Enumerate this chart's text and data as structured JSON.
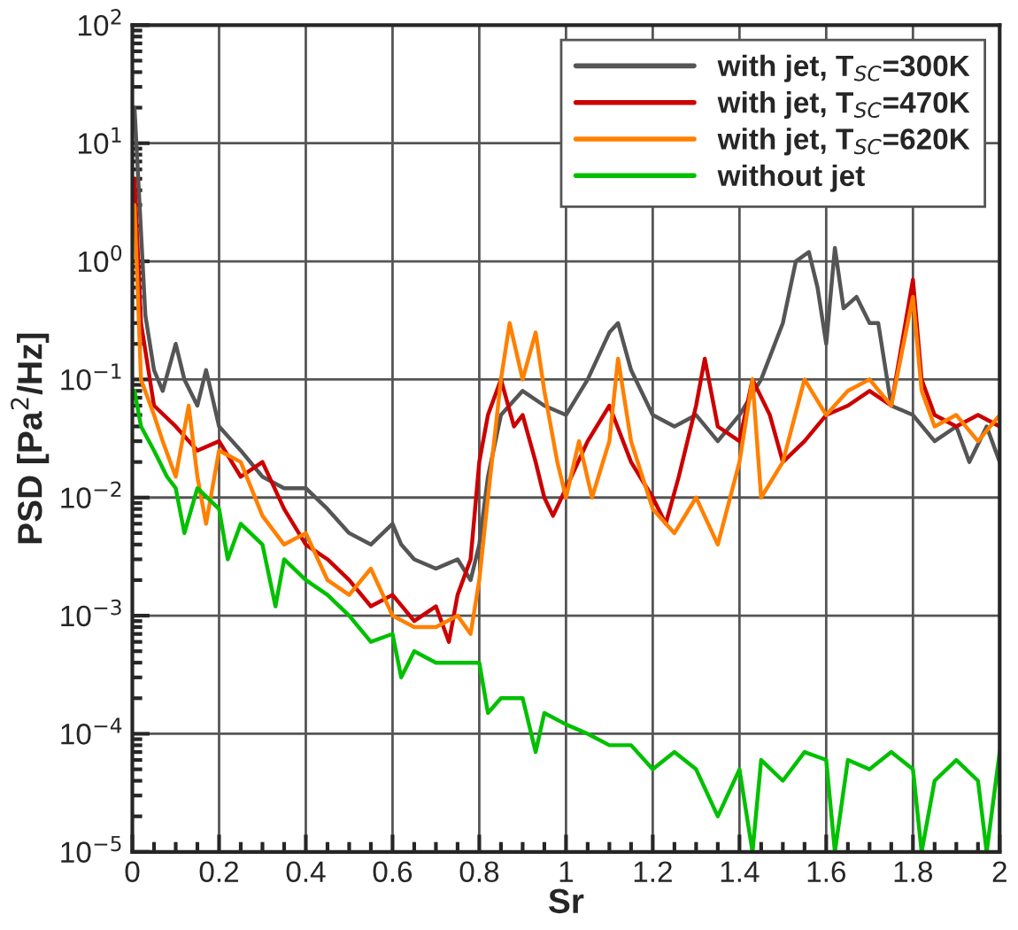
{
  "chart_data": {
    "type": "line",
    "xlabel": "Sr",
    "ylabel": "PSD [Pa$^{2}$/Hz]",
    "log": "y",
    "grid": true,
    "legend": "top right",
    "line_style": "solid",
    "marker": "none",
    "xlim": [
      0,
      2
    ],
    "xticks": [
      0,
      0.2,
      0.4,
      0.6,
      0.8,
      1,
      1.2,
      1.4,
      1.6,
      1.8,
      2
    ],
    "ylim": [
      1e-05,
      100
    ],
    "yticks": [
      {
        "value": 1e-05,
        "label": "10$^{−5}$"
      },
      {
        "value": 0.0001,
        "label": "10$^{−4}$"
      },
      {
        "value": 0.001,
        "label": "10$^{−3}$"
      },
      {
        "value": 0.01,
        "label": "10$^{−2}$"
      },
      {
        "value": 0.1,
        "label": "10$^{−1}$"
      },
      {
        "value": 1,
        "label": "10$^{0}$"
      },
      {
        "value": 10,
        "label": "10$^{1}$"
      },
      {
        "value": 100,
        "label": "10$^{2}$"
      }
    ],
    "series": [
      {
        "name": "with jet, T$_{SC}$=300K",
        "color": "#555555",
        "x": [
          0.005,
          0.03,
          0.05,
          0.07,
          0.1,
          0.12,
          0.15,
          0.17,
          0.2,
          0.25,
          0.3,
          0.35,
          0.4,
          0.45,
          0.5,
          0.55,
          0.6,
          0.62,
          0.65,
          0.7,
          0.75,
          0.78,
          0.8,
          0.82,
          0.85,
          0.9,
          0.95,
          1.0,
          1.05,
          1.1,
          1.12,
          1.15,
          1.2,
          1.25,
          1.3,
          1.35,
          1.4,
          1.45,
          1.5,
          1.53,
          1.56,
          1.58,
          1.6,
          1.62,
          1.64,
          1.67,
          1.7,
          1.72,
          1.75,
          1.8,
          1.85,
          1.9,
          1.93,
          1.97,
          2.0
        ],
        "values": [
          20,
          0.35,
          0.12,
          0.08,
          0.2,
          0.1,
          0.06,
          0.12,
          0.04,
          0.025,
          0.015,
          0.012,
          0.012,
          0.008,
          0.005,
          0.004,
          0.006,
          0.004,
          0.003,
          0.0025,
          0.003,
          0.002,
          0.004,
          0.015,
          0.05,
          0.08,
          0.06,
          0.05,
          0.1,
          0.25,
          0.3,
          0.12,
          0.05,
          0.04,
          0.05,
          0.03,
          0.05,
          0.1,
          0.3,
          1.0,
          1.2,
          0.6,
          0.2,
          1.3,
          0.4,
          0.5,
          0.3,
          0.3,
          0.06,
          0.05,
          0.03,
          0.04,
          0.02,
          0.04,
          0.02
        ]
      },
      {
        "name": "with jet, T$_{SC}$=470K",
        "color": "#cc0000",
        "x": [
          0.005,
          0.02,
          0.05,
          0.1,
          0.15,
          0.2,
          0.25,
          0.3,
          0.35,
          0.4,
          0.45,
          0.5,
          0.55,
          0.6,
          0.65,
          0.7,
          0.73,
          0.75,
          0.78,
          0.8,
          0.82,
          0.85,
          0.88,
          0.9,
          0.93,
          0.95,
          0.97,
          1.0,
          1.05,
          1.1,
          1.15,
          1.2,
          1.23,
          1.26,
          1.3,
          1.32,
          1.35,
          1.4,
          1.43,
          1.47,
          1.5,
          1.55,
          1.6,
          1.65,
          1.7,
          1.75,
          1.8,
          1.82,
          1.85,
          1.9,
          1.95,
          2.0
        ],
        "values": [
          5,
          0.3,
          0.06,
          0.04,
          0.025,
          0.03,
          0.015,
          0.02,
          0.008,
          0.004,
          0.003,
          0.002,
          0.0012,
          0.0015,
          0.0009,
          0.0012,
          0.0006,
          0.0015,
          0.003,
          0.02,
          0.05,
          0.1,
          0.04,
          0.05,
          0.02,
          0.01,
          0.007,
          0.012,
          0.03,
          0.06,
          0.02,
          0.01,
          0.006,
          0.015,
          0.06,
          0.15,
          0.04,
          0.03,
          0.1,
          0.05,
          0.02,
          0.03,
          0.05,
          0.06,
          0.08,
          0.06,
          0.7,
          0.1,
          0.05,
          0.04,
          0.05,
          0.04
        ]
      },
      {
        "name": "with jet, T$_{SC}$=620K",
        "color": "#ff8000",
        "x": [
          0.005,
          0.02,
          0.05,
          0.07,
          0.1,
          0.13,
          0.15,
          0.17,
          0.2,
          0.25,
          0.3,
          0.35,
          0.4,
          0.45,
          0.5,
          0.55,
          0.6,
          0.65,
          0.7,
          0.75,
          0.78,
          0.8,
          0.82,
          0.85,
          0.87,
          0.9,
          0.93,
          0.95,
          0.98,
          1.0,
          1.03,
          1.06,
          1.1,
          1.12,
          1.15,
          1.2,
          1.25,
          1.3,
          1.35,
          1.4,
          1.43,
          1.45,
          1.5,
          1.55,
          1.6,
          1.65,
          1.7,
          1.75,
          1.8,
          1.82,
          1.85,
          1.9,
          1.95,
          2.0
        ],
        "values": [
          3,
          0.1,
          0.05,
          0.03,
          0.015,
          0.06,
          0.015,
          0.006,
          0.025,
          0.02,
          0.007,
          0.004,
          0.005,
          0.002,
          0.0015,
          0.0025,
          0.001,
          0.0008,
          0.0008,
          0.001,
          0.0007,
          0.002,
          0.01,
          0.1,
          0.3,
          0.1,
          0.25,
          0.08,
          0.02,
          0.01,
          0.03,
          0.01,
          0.03,
          0.15,
          0.03,
          0.008,
          0.005,
          0.01,
          0.004,
          0.02,
          0.1,
          0.01,
          0.02,
          0.1,
          0.05,
          0.08,
          0.1,
          0.06,
          0.5,
          0.08,
          0.04,
          0.05,
          0.03,
          0.05
        ]
      },
      {
        "name": "without jet",
        "color": "#00c000",
        "x": [
          0.005,
          0.02,
          0.05,
          0.08,
          0.1,
          0.12,
          0.15,
          0.2,
          0.22,
          0.25,
          0.3,
          0.33,
          0.35,
          0.4,
          0.45,
          0.5,
          0.55,
          0.6,
          0.62,
          0.65,
          0.7,
          0.75,
          0.8,
          0.82,
          0.85,
          0.9,
          0.93,
          0.95,
          1.0,
          1.05,
          1.1,
          1.15,
          1.2,
          1.25,
          1.3,
          1.35,
          1.4,
          1.43,
          1.45,
          1.5,
          1.55,
          1.6,
          1.62,
          1.65,
          1.7,
          1.75,
          1.8,
          1.82,
          1.85,
          1.9,
          1.95,
          1.97,
          2.0
        ],
        "values": [
          0.08,
          0.04,
          0.025,
          0.015,
          0.012,
          0.005,
          0.012,
          0.008,
          0.003,
          0.006,
          0.004,
          0.0012,
          0.003,
          0.002,
          0.0015,
          0.001,
          0.0006,
          0.0007,
          0.0003,
          0.0005,
          0.0004,
          0.0004,
          0.0004,
          0.00015,
          0.0002,
          0.0002,
          7e-05,
          0.00015,
          0.00012,
          0.0001,
          8e-05,
          8e-05,
          5e-05,
          7e-05,
          5e-05,
          2e-05,
          5e-05,
          1e-05,
          6e-05,
          4e-05,
          7e-05,
          6e-05,
          1e-05,
          6e-05,
          5e-05,
          7e-05,
          5e-05,
          1e-05,
          4e-05,
          6e-05,
          4e-05,
          1e-05,
          7e-05
        ]
      }
    ]
  }
}
